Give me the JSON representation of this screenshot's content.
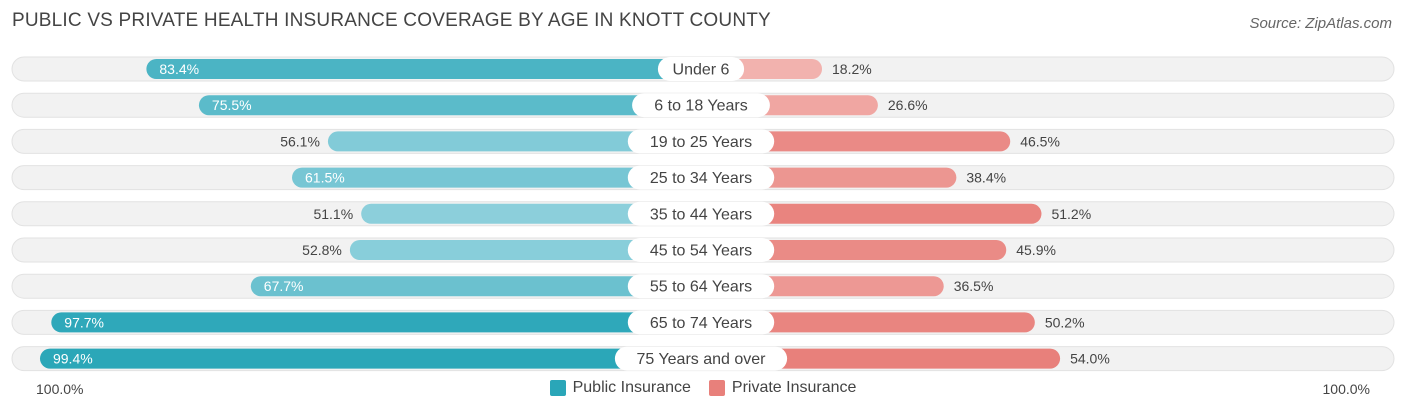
{
  "title": "PUBLIC VS PRIVATE HEALTH INSURANCE COVERAGE BY AGE IN KNOTT COUNTY",
  "source": "Source: ZipAtlas.com",
  "axis": {
    "left_label": "100.0%",
    "right_label": "100.0%"
  },
  "colors": {
    "public_strong": "#2aa6b8",
    "public_light": "#8ed0dc",
    "private_strong": "#e8807b",
    "private_light": "#f2b2ae",
    "row_bg": "#f2f2f2"
  },
  "chart_data": {
    "type": "bar",
    "orientation": "diverging-horizontal",
    "categories": [
      "Under 6",
      "6 to 18 Years",
      "19 to 25 Years",
      "25 to 34 Years",
      "35 to 44 Years",
      "45 to 54 Years",
      "55 to 64 Years",
      "65 to 74 Years",
      "75 Years and over"
    ],
    "series": [
      {
        "name": "Public Insurance",
        "values": [
          83.4,
          75.5,
          56.1,
          61.5,
          51.1,
          52.8,
          67.7,
          97.7,
          99.4
        ],
        "labels": [
          "83.4%",
          "75.5%",
          "56.1%",
          "61.5%",
          "51.1%",
          "52.8%",
          "67.7%",
          "97.7%",
          "99.4%"
        ]
      },
      {
        "name": "Private Insurance",
        "values": [
          18.2,
          26.6,
          46.5,
          38.4,
          51.2,
          45.9,
          36.5,
          50.2,
          54.0
        ],
        "labels": [
          "18.2%",
          "26.6%",
          "46.5%",
          "38.4%",
          "51.2%",
          "45.9%",
          "36.5%",
          "50.2%",
          "54.0%"
        ]
      }
    ],
    "xlim": [
      0,
      100
    ],
    "legend_position": "bottom-center"
  }
}
